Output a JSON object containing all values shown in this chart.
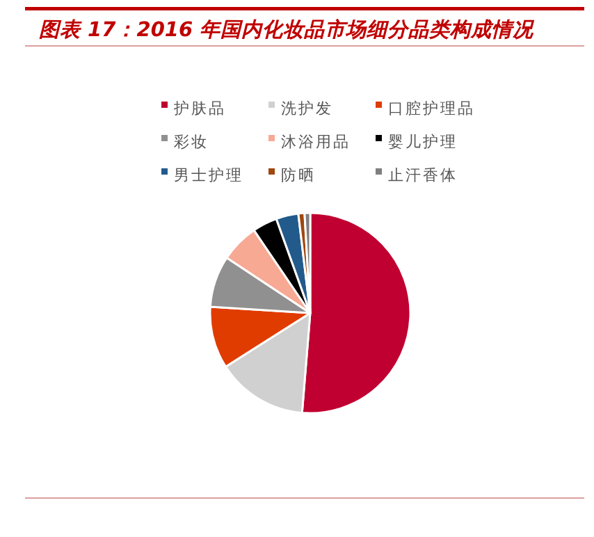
{
  "chart_data": {
    "type": "pie",
    "title": "图表 17：2016 年国内化妆品市场细分品类构成情况",
    "categories": [
      "护肤品",
      "洗护发",
      "口腔护理品",
      "彩妆",
      "沐浴用品",
      "婴儿护理",
      "男士护理",
      "防晒",
      "止汗香体"
    ],
    "values": [
      51.3,
      14.7,
      10,
      8.3,
      6.2,
      4,
      3.6,
      1,
      0.9
    ],
    "colors": [
      "#c00030",
      "#d0d0d0",
      "#e03c00",
      "#909090",
      "#f7a994",
      "#000000",
      "#235a8c",
      "#a0480f",
      "#7f7f7f"
    ],
    "legend": "top"
  }
}
